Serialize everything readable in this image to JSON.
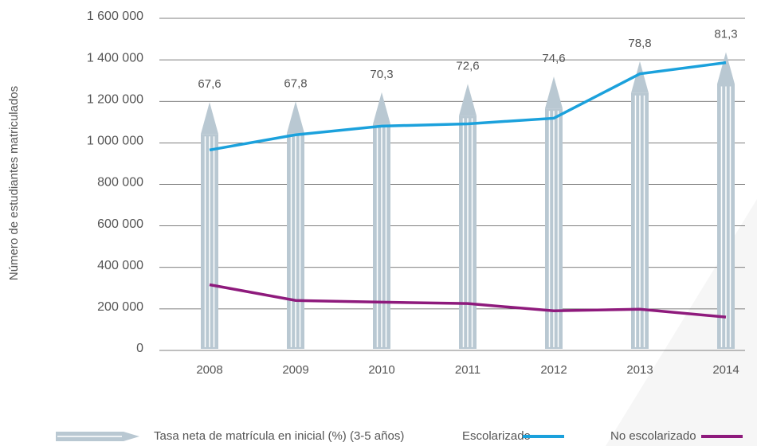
{
  "chart_data": {
    "type": "line",
    "y_axis_label": "Número de estudiantes matriculados",
    "categories": [
      "2008",
      "2009",
      "2010",
      "2011",
      "2012",
      "2013",
      "2014"
    ],
    "ylim": [
      0,
      1600000
    ],
    "yticks": [
      0,
      {
        "value": 200000,
        "label": "200 000"
      },
      {
        "value": 400000,
        "label": "400 000"
      },
      {
        "value": 600000,
        "label": "600 000"
      },
      {
        "value": 800000,
        "label": "800 000"
      },
      {
        "value": 1000000,
        "label": "1 000 000"
      },
      {
        "value": 1200000,
        "label": "1 200 000"
      },
      {
        "value": 1400000,
        "label": "1 400 000"
      },
      {
        "value": 1600000,
        "label": "1 600 000"
      }
    ],
    "y2lim": [
      0,
      91
    ],
    "grid": true,
    "series": [
      {
        "name": "Tasa neta de matrícula en inicial (%) (3-5 años)",
        "type": "bar",
        "axis": "y2",
        "color": "#b9c8d2",
        "values": [
          67.6,
          67.8,
          70.3,
          72.6,
          74.6,
          78.8,
          81.3
        ],
        "value_labels": [
          "67,6",
          "67,8",
          "70,3",
          "72,6",
          "74,6",
          "78,8",
          "81,3"
        ]
      },
      {
        "name": "Escolarizado",
        "type": "line",
        "color": "#1ba1dc",
        "values": [
          958000,
          1031000,
          1073000,
          1084000,
          1111000,
          1325000,
          1379000
        ]
      },
      {
        "name": "No escolarizado",
        "type": "line",
        "color": "#8e1a7c",
        "values": [
          309000,
          233000,
          225000,
          218000,
          183000,
          191000,
          153000
        ]
      }
    ]
  }
}
